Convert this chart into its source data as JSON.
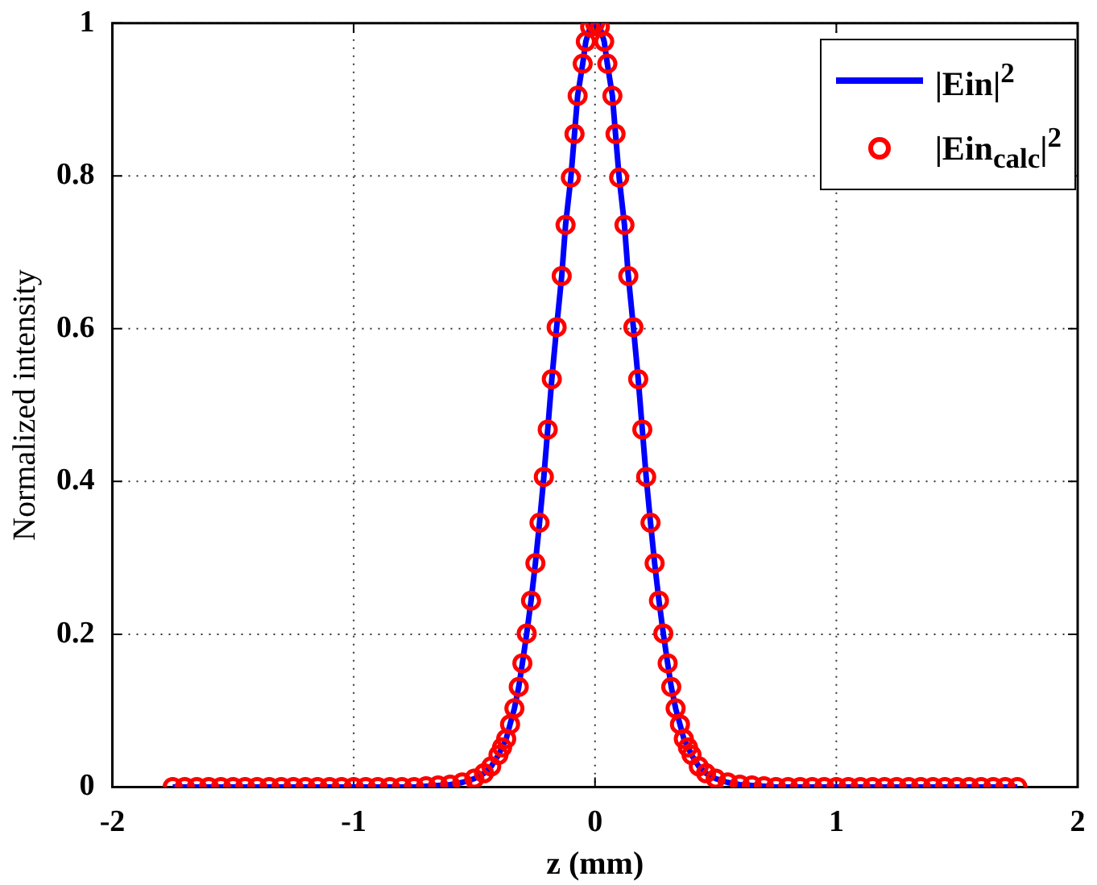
{
  "chart_data": {
    "type": "line",
    "xlabel": "z (mm)",
    "ylabel": "Normalized intensity",
    "x": [
      -1.75,
      -1.7,
      -1.65,
      -1.6,
      -1.55,
      -1.5,
      -1.45,
      -1.4,
      -1.35,
      -1.3,
      -1.25,
      -1.2,
      -1.15,
      -1.1,
      -1.05,
      -1.0,
      -0.95,
      -0.9,
      -0.85,
      -0.8,
      -0.75,
      -0.7,
      -0.65,
      -0.6,
      -0.55,
      -0.5,
      -0.46,
      -0.43,
      -0.4,
      -0.385,
      -0.368,
      -0.352,
      -0.334,
      -0.316,
      -0.301,
      -0.283,
      -0.265,
      -0.247,
      -0.23,
      -0.212,
      -0.196,
      -0.179,
      -0.159,
      -0.138,
      -0.122,
      -0.1,
      -0.085,
      -0.072,
      -0.051,
      -0.038,
      -0.02,
      0,
      0.02,
      0.038,
      0.051,
      0.072,
      0.085,
      0.1,
      0.122,
      0.138,
      0.159,
      0.179,
      0.196,
      0.212,
      0.23,
      0.247,
      0.265,
      0.283,
      0.301,
      0.316,
      0.334,
      0.352,
      0.368,
      0.385,
      0.4,
      0.43,
      0.46,
      0.5,
      0.55,
      0.6,
      0.65,
      0.7,
      0.75,
      0.8,
      0.85,
      0.9,
      0.95,
      1.0,
      1.05,
      1.1,
      1.15,
      1.2,
      1.25,
      1.3,
      1.35,
      1.4,
      1.45,
      1.5,
      1.55,
      1.6,
      1.65,
      1.7,
      1.75
    ],
    "series": [
      {
        "name": "|Ein|$^{2}$",
        "type": "line",
        "color": "#0000ff",
        "marker": "none",
        "line_style": "solid",
        "values": [
          0,
          0,
          0,
          0,
          0,
          0,
          0,
          0,
          0,
          0,
          0,
          0,
          0,
          0,
          0,
          0,
          0,
          0,
          0,
          0,
          0,
          0.001,
          0.002,
          0.003,
          0.006,
          0.011,
          0.018,
          0.027,
          0.042,
          0.052,
          0.063,
          0.082,
          0.103,
          0.131,
          0.162,
          0.201,
          0.244,
          0.293,
          0.346,
          0.406,
          0.468,
          0.534,
          0.602,
          0.669,
          0.736,
          0.798,
          0.855,
          0.905,
          0.947,
          0.976,
          0.995,
          1,
          0.995,
          0.976,
          0.947,
          0.905,
          0.855,
          0.798,
          0.736,
          0.669,
          0.602,
          0.534,
          0.468,
          0.406,
          0.346,
          0.293,
          0.244,
          0.201,
          0.162,
          0.131,
          0.103,
          0.082,
          0.063,
          0.052,
          0.042,
          0.027,
          0.018,
          0.011,
          0.006,
          0.003,
          0.002,
          0.001,
          0,
          0,
          0,
          0,
          0,
          0,
          0,
          0,
          0,
          0,
          0,
          0,
          0,
          0,
          0,
          0,
          0,
          0,
          0,
          0,
          0
        ]
      },
      {
        "name": "|Ein$_{calc}$|$^{2}$",
        "type": "scatter",
        "color": "#ff0000",
        "marker": "circle",
        "values": [
          0,
          0,
          0,
          0,
          0,
          0,
          0,
          0,
          0,
          0,
          0,
          0,
          0,
          0,
          0,
          0,
          0,
          0,
          0,
          0,
          0,
          0.001,
          0.002,
          0.003,
          0.006,
          0.011,
          0.018,
          0.027,
          0.042,
          0.052,
          0.063,
          0.082,
          0.103,
          0.131,
          0.162,
          0.201,
          0.244,
          0.293,
          0.346,
          0.406,
          0.468,
          0.534,
          0.602,
          0.669,
          0.736,
          0.798,
          0.855,
          0.905,
          0.947,
          0.976,
          0.995,
          1,
          0.995,
          0.976,
          0.947,
          0.905,
          0.855,
          0.798,
          0.736,
          0.669,
          0.602,
          0.534,
          0.468,
          0.406,
          0.346,
          0.293,
          0.244,
          0.201,
          0.162,
          0.131,
          0.103,
          0.082,
          0.063,
          0.052,
          0.042,
          0.027,
          0.018,
          0.011,
          0.006,
          0.003,
          0.002,
          0.001,
          0,
          0,
          0,
          0,
          0,
          0,
          0,
          0,
          0,
          0,
          0,
          0,
          0,
          0,
          0,
          0,
          0,
          0,
          0,
          0,
          0
        ]
      }
    ],
    "xlim": [
      -2,
      2
    ],
    "xticks": [
      -2,
      -1,
      0,
      1,
      2
    ],
    "ylim": [
      0,
      1
    ],
    "yticks": [
      0,
      0.2,
      0.4,
      0.6,
      0.8,
      1
    ],
    "grid": true,
    "legend": "top right"
  }
}
